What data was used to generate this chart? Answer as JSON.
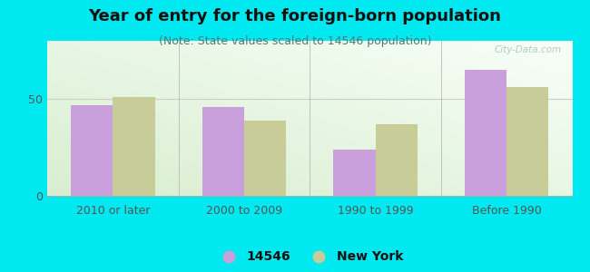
{
  "title": "Year of entry for the foreign-born population",
  "subtitle": "(Note: State values scaled to 14546 population)",
  "categories": [
    "2010 or later",
    "2000 to 2009",
    "1990 to 1999",
    "Before 1990"
  ],
  "values_local": [
    47,
    46,
    24,
    65
  ],
  "values_state": [
    51,
    39,
    37,
    56
  ],
  "bar_color_local": "#c9a0dc",
  "bar_color_state": "#c8cc99",
  "background_outer": "#00e8f0",
  "background_plot_topleft": "#e8f5e0",
  "background_plot_topright": "#f8fef8",
  "background_plot_bottom": "#dff0da",
  "ylim": [
    0,
    80
  ],
  "yticks": [
    0,
    50
  ],
  "legend_labels": [
    "14546",
    "New York"
  ],
  "bar_width": 0.32,
  "title_fontsize": 13,
  "subtitle_fontsize": 9,
  "tick_fontsize": 9,
  "legend_fontsize": 10,
  "watermark": "City-Data.com"
}
